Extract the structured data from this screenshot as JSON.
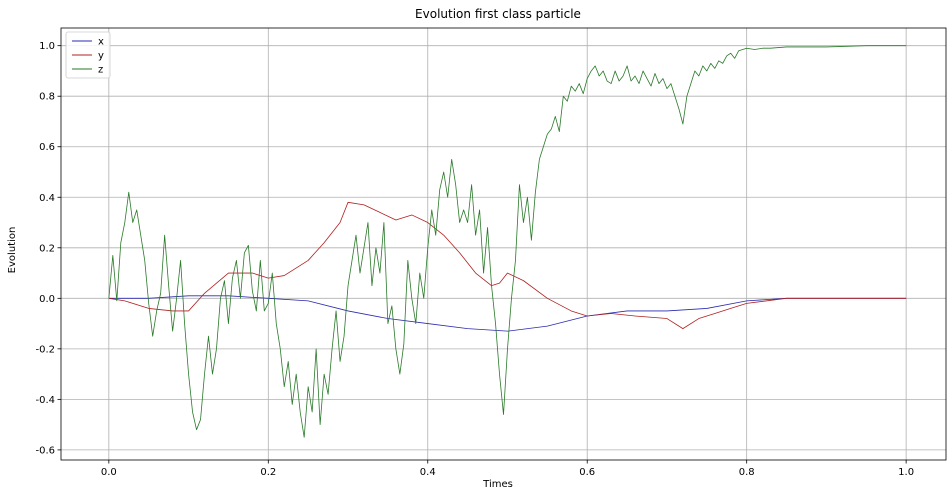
{
  "chart_data": {
    "type": "line",
    "title": "Evolution first class particle",
    "xlabel": "Times",
    "ylabel": "Evolution",
    "xlim": [
      -0.06,
      1.05
    ],
    "ylim": [
      -0.64,
      1.07
    ],
    "xticks": [
      "0.0",
      "0.2",
      "0.4",
      "0.6",
      "0.8",
      "1.0"
    ],
    "yticks": [
      "-0.6",
      "-0.4",
      "-0.2",
      "0.0",
      "0.2",
      "0.4",
      "0.6",
      "0.8",
      "1.0"
    ],
    "grid": true,
    "legend_position": "top-left",
    "series": [
      {
        "name": "x",
        "color": "#2a2ab0",
        "points": [
          [
            0.0,
            0.0
          ],
          [
            0.05,
            0.0
          ],
          [
            0.1,
            0.01
          ],
          [
            0.15,
            0.01
          ],
          [
            0.2,
            0.0
          ],
          [
            0.25,
            -0.01
          ],
          [
            0.3,
            -0.05
          ],
          [
            0.35,
            -0.08
          ],
          [
            0.4,
            -0.1
          ],
          [
            0.45,
            -0.12
          ],
          [
            0.5,
            -0.13
          ],
          [
            0.55,
            -0.11
          ],
          [
            0.6,
            -0.07
          ],
          [
            0.65,
            -0.05
          ],
          [
            0.7,
            -0.05
          ],
          [
            0.75,
            -0.04
          ],
          [
            0.8,
            -0.01
          ],
          [
            0.85,
            0.0
          ],
          [
            0.9,
            0.0
          ],
          [
            0.95,
            0.0
          ],
          [
            1.0,
            0.0
          ]
        ]
      },
      {
        "name": "y",
        "color": "#b02020",
        "points": [
          [
            0.0,
            0.0
          ],
          [
            0.02,
            -0.01
          ],
          [
            0.05,
            -0.04
          ],
          [
            0.08,
            -0.05
          ],
          [
            0.1,
            -0.05
          ],
          [
            0.12,
            0.02
          ],
          [
            0.15,
            0.1
          ],
          [
            0.18,
            0.1
          ],
          [
            0.2,
            0.08
          ],
          [
            0.22,
            0.09
          ],
          [
            0.25,
            0.15
          ],
          [
            0.27,
            0.22
          ],
          [
            0.29,
            0.3
          ],
          [
            0.3,
            0.38
          ],
          [
            0.32,
            0.37
          ],
          [
            0.34,
            0.34
          ],
          [
            0.36,
            0.31
          ],
          [
            0.38,
            0.33
          ],
          [
            0.4,
            0.3
          ],
          [
            0.42,
            0.25
          ],
          [
            0.44,
            0.18
          ],
          [
            0.46,
            0.1
          ],
          [
            0.48,
            0.05
          ],
          [
            0.49,
            0.06
          ],
          [
            0.5,
            0.1
          ],
          [
            0.52,
            0.07
          ],
          [
            0.55,
            0.0
          ],
          [
            0.58,
            -0.05
          ],
          [
            0.6,
            -0.07
          ],
          [
            0.63,
            -0.06
          ],
          [
            0.66,
            -0.07
          ],
          [
            0.7,
            -0.08
          ],
          [
            0.72,
            -0.12
          ],
          [
            0.74,
            -0.08
          ],
          [
            0.76,
            -0.06
          ],
          [
            0.78,
            -0.04
          ],
          [
            0.8,
            -0.02
          ],
          [
            0.85,
            0.0
          ],
          [
            0.9,
            0.0
          ],
          [
            0.95,
            0.0
          ],
          [
            1.0,
            0.0
          ]
        ]
      },
      {
        "name": "z",
        "color": "#2a7a2a",
        "points": [
          [
            0.0,
            0.0
          ],
          [
            0.005,
            0.17
          ],
          [
            0.01,
            -0.01
          ],
          [
            0.015,
            0.22
          ],
          [
            0.02,
            0.3
          ],
          [
            0.025,
            0.42
          ],
          [
            0.03,
            0.3
          ],
          [
            0.035,
            0.35
          ],
          [
            0.04,
            0.25
          ],
          [
            0.045,
            0.15
          ],
          [
            0.05,
            -0.02
          ],
          [
            0.055,
            -0.15
          ],
          [
            0.06,
            -0.05
          ],
          [
            0.065,
            0.02
          ],
          [
            0.07,
            0.25
          ],
          [
            0.075,
            0.05
          ],
          [
            0.08,
            -0.13
          ],
          [
            0.085,
            0.0
          ],
          [
            0.09,
            0.15
          ],
          [
            0.095,
            -0.1
          ],
          [
            0.1,
            -0.3
          ],
          [
            0.105,
            -0.45
          ],
          [
            0.11,
            -0.52
          ],
          [
            0.115,
            -0.48
          ],
          [
            0.12,
            -0.3
          ],
          [
            0.125,
            -0.15
          ],
          [
            0.13,
            -0.3
          ],
          [
            0.135,
            -0.2
          ],
          [
            0.14,
            0.0
          ],
          [
            0.145,
            0.07
          ],
          [
            0.15,
            -0.1
          ],
          [
            0.155,
            0.08
          ],
          [
            0.16,
            0.15
          ],
          [
            0.165,
            0.0
          ],
          [
            0.17,
            0.18
          ],
          [
            0.175,
            0.21
          ],
          [
            0.18,
            0.03
          ],
          [
            0.185,
            -0.05
          ],
          [
            0.19,
            0.15
          ],
          [
            0.195,
            -0.05
          ],
          [
            0.2,
            -0.02
          ],
          [
            0.205,
            0.1
          ],
          [
            0.21,
            -0.1
          ],
          [
            0.215,
            -0.2
          ],
          [
            0.22,
            -0.35
          ],
          [
            0.225,
            -0.25
          ],
          [
            0.23,
            -0.42
          ],
          [
            0.235,
            -0.3
          ],
          [
            0.24,
            -0.45
          ],
          [
            0.245,
            -0.55
          ],
          [
            0.25,
            -0.35
          ],
          [
            0.255,
            -0.45
          ],
          [
            0.26,
            -0.2
          ],
          [
            0.265,
            -0.5
          ],
          [
            0.27,
            -0.3
          ],
          [
            0.275,
            -0.38
          ],
          [
            0.28,
            -0.2
          ],
          [
            0.285,
            -0.05
          ],
          [
            0.29,
            -0.25
          ],
          [
            0.295,
            -0.15
          ],
          [
            0.3,
            0.05
          ],
          [
            0.305,
            0.15
          ],
          [
            0.31,
            0.25
          ],
          [
            0.315,
            0.1
          ],
          [
            0.32,
            0.2
          ],
          [
            0.325,
            0.3
          ],
          [
            0.33,
            0.05
          ],
          [
            0.335,
            0.2
          ],
          [
            0.34,
            0.1
          ],
          [
            0.345,
            0.3
          ],
          [
            0.35,
            -0.1
          ],
          [
            0.355,
            -0.03
          ],
          [
            0.36,
            -0.2
          ],
          [
            0.365,
            -0.3
          ],
          [
            0.37,
            -0.18
          ],
          [
            0.375,
            0.15
          ],
          [
            0.38,
            0.0
          ],
          [
            0.385,
            -0.1
          ],
          [
            0.39,
            0.1
          ],
          [
            0.395,
            0.0
          ],
          [
            0.4,
            0.2
          ],
          [
            0.405,
            0.35
          ],
          [
            0.41,
            0.25
          ],
          [
            0.415,
            0.43
          ],
          [
            0.42,
            0.5
          ],
          [
            0.425,
            0.4
          ],
          [
            0.43,
            0.55
          ],
          [
            0.435,
            0.45
          ],
          [
            0.44,
            0.3
          ],
          [
            0.445,
            0.35
          ],
          [
            0.45,
            0.3
          ],
          [
            0.455,
            0.45
          ],
          [
            0.46,
            0.25
          ],
          [
            0.465,
            0.35
          ],
          [
            0.47,
            0.1
          ],
          [
            0.475,
            0.28
          ],
          [
            0.48,
            0.05
          ],
          [
            0.485,
            -0.1
          ],
          [
            0.49,
            -0.3
          ],
          [
            0.495,
            -0.46
          ],
          [
            0.5,
            -0.2
          ],
          [
            0.505,
            0.0
          ],
          [
            0.51,
            0.15
          ],
          [
            0.515,
            0.45
          ],
          [
            0.52,
            0.3
          ],
          [
            0.525,
            0.4
          ],
          [
            0.53,
            0.23
          ],
          [
            0.535,
            0.42
          ],
          [
            0.54,
            0.55
          ],
          [
            0.545,
            0.6
          ],
          [
            0.55,
            0.65
          ],
          [
            0.555,
            0.67
          ],
          [
            0.56,
            0.72
          ],
          [
            0.565,
            0.66
          ],
          [
            0.57,
            0.8
          ],
          [
            0.575,
            0.78
          ],
          [
            0.58,
            0.84
          ],
          [
            0.585,
            0.82
          ],
          [
            0.59,
            0.85
          ],
          [
            0.595,
            0.81
          ],
          [
            0.6,
            0.87
          ],
          [
            0.605,
            0.9
          ],
          [
            0.61,
            0.92
          ],
          [
            0.615,
            0.88
          ],
          [
            0.62,
            0.9
          ],
          [
            0.625,
            0.86
          ],
          [
            0.63,
            0.85
          ],
          [
            0.635,
            0.9
          ],
          [
            0.64,
            0.86
          ],
          [
            0.645,
            0.88
          ],
          [
            0.65,
            0.92
          ],
          [
            0.655,
            0.86
          ],
          [
            0.66,
            0.88
          ],
          [
            0.665,
            0.85
          ],
          [
            0.67,
            0.9
          ],
          [
            0.675,
            0.87
          ],
          [
            0.68,
            0.84
          ],
          [
            0.685,
            0.89
          ],
          [
            0.69,
            0.85
          ],
          [
            0.695,
            0.87
          ],
          [
            0.7,
            0.83
          ],
          [
            0.705,
            0.85
          ],
          [
            0.71,
            0.8
          ],
          [
            0.715,
            0.75
          ],
          [
            0.72,
            0.69
          ],
          [
            0.725,
            0.8
          ],
          [
            0.73,
            0.85
          ],
          [
            0.735,
            0.9
          ],
          [
            0.74,
            0.88
          ],
          [
            0.745,
            0.92
          ],
          [
            0.75,
            0.9
          ],
          [
            0.755,
            0.93
          ],
          [
            0.76,
            0.91
          ],
          [
            0.765,
            0.94
          ],
          [
            0.77,
            0.93
          ],
          [
            0.775,
            0.96
          ],
          [
            0.78,
            0.97
          ],
          [
            0.785,
            0.95
          ],
          [
            0.79,
            0.98
          ],
          [
            0.8,
            0.99
          ],
          [
            0.81,
            0.985
          ],
          [
            0.82,
            0.99
          ],
          [
            0.83,
            0.99
          ],
          [
            0.85,
            0.995
          ],
          [
            0.9,
            0.995
          ],
          [
            0.95,
            1.0
          ],
          [
            1.0,
            1.0
          ]
        ]
      }
    ]
  }
}
